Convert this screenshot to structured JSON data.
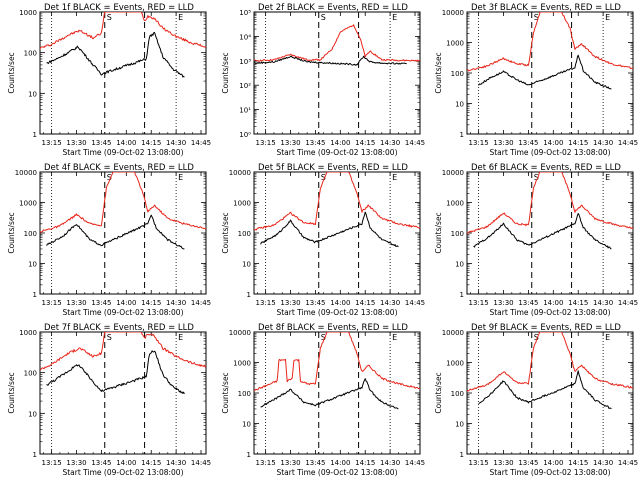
{
  "colors": {
    "events": "#000000",
    "lld": "#e8251a",
    "axes": "#000000"
  },
  "chart_data": [
    {
      "type": "line",
      "title": "Det 1f  BLACK = Events, RED = LLD",
      "xlabel": "Start Time (09-Oct-02 13:08:00)",
      "ylabel": "Counts/sec",
      "y_scale": "log",
      "ylim": [
        1,
        1000
      ],
      "y_ticks": [
        "1",
        "10",
        "100",
        "1000"
      ],
      "x_ticks": [
        "13:15",
        "13:30",
        "13:45",
        "14:00",
        "14:15",
        "14:30",
        "14:45"
      ],
      "markers": [
        "S",
        "E"
      ],
      "series": [
        {
          "name": "LLD",
          "color": "#e8251a",
          "x": [
            "13:08",
            "13:15",
            "13:25",
            "13:32",
            "13:40",
            "13:45",
            "13:47",
            "14:09",
            "14:11",
            "14:13",
            "14:17",
            "14:22",
            "14:30",
            "14:40",
            "14:48"
          ],
          "y": [
            130,
            160,
            270,
            350,
            230,
            300,
            1000,
            1000,
            600,
            800,
            700,
            400,
            250,
            170,
            140
          ]
        },
        {
          "name": "Events",
          "color": "#000000",
          "x": [
            "13:12",
            "13:18",
            "13:25",
            "13:31",
            "13:40",
            "13:45",
            "14:12",
            "14:14",
            "14:17",
            "14:22",
            "14:28",
            "14:35"
          ],
          "y": [
            55,
            70,
            100,
            140,
            50,
            30,
            70,
            250,
            300,
            80,
            40,
            25
          ]
        }
      ]
    },
    {
      "type": "line",
      "title": "Det 2f  BLACK = Events, RED = LLD",
      "xlabel": "Start Time (09-Oct-02 13:08:00)",
      "ylabel": "Counts/sec",
      "y_scale": "log",
      "ylim": [
        1,
        100000
      ],
      "y_ticks": [
        "10⁰",
        "10¹",
        "10²",
        "10³",
        "10⁴",
        "10⁵"
      ],
      "x_ticks": [
        "13:15",
        "13:30",
        "13:45",
        "14:00",
        "14:15",
        "14:30",
        "14:45"
      ],
      "markers": [
        "S",
        "E"
      ],
      "series": [
        {
          "name": "LLD",
          "color": "#e8251a",
          "x": [
            "13:08",
            "13:20",
            "13:30",
            "13:40",
            "13:48",
            "13:55",
            "14:00",
            "14:08",
            "14:12",
            "14:15",
            "14:18",
            "14:25",
            "14:48"
          ],
          "y": [
            1000,
            1100,
            1800,
            1100,
            1100,
            3000,
            15000,
            30000,
            8000,
            1500,
            2500,
            1100,
            1000
          ]
        },
        {
          "name": "Events",
          "color": "#000000",
          "x": [
            "13:08",
            "13:20",
            "13:30",
            "13:40",
            "13:48",
            "14:10",
            "14:14",
            "14:18",
            "14:25",
            "14:40"
          ],
          "y": [
            800,
            900,
            1500,
            900,
            850,
            700,
            1500,
            900,
            800,
            750
          ]
        }
      ]
    },
    {
      "type": "line",
      "title": "Det 3f  BLACK = Events, RED = LLD",
      "xlabel": "Start Time (09-Oct-02 13:08:00)",
      "ylabel": "Counts/sec",
      "y_scale": "log",
      "ylim": [
        1,
        10000
      ],
      "y_ticks": [
        "1",
        "10",
        "100",
        "1000",
        "10000"
      ],
      "x_ticks": [
        "13:15",
        "13:30",
        "13:45",
        "14:00",
        "14:15",
        "14:30",
        "14:45"
      ],
      "markers": [
        "S",
        "E"
      ],
      "series": [
        {
          "name": "LLD",
          "color": "#e8251a",
          "x": [
            "13:08",
            "13:20",
            "13:30",
            "13:38",
            "13:45",
            "13:48",
            "13:52",
            "14:05",
            "14:10",
            "14:13",
            "14:17",
            "14:25",
            "14:35",
            "14:48"
          ],
          "y": [
            120,
            170,
            300,
            200,
            180,
            2000,
            10000,
            10000,
            3000,
            600,
            900,
            350,
            200,
            140
          ]
        },
        {
          "name": "Events",
          "color": "#000000",
          "x": [
            "13:15",
            "13:22",
            "13:30",
            "13:38",
            "13:45",
            "14:13",
            "14:15",
            "14:18",
            "14:25",
            "14:35"
          ],
          "y": [
            40,
            70,
            110,
            60,
            40,
            150,
            400,
            120,
            50,
            30
          ]
        }
      ]
    },
    {
      "type": "line",
      "title": "Det 4f  BLACK = Events, RED = LLD",
      "xlabel": "Start Time (09-Oct-02 13:08:00)",
      "ylabel": "Counts/sec",
      "y_scale": "log",
      "ylim": [
        1,
        10000
      ],
      "y_ticks": [
        "1",
        "10",
        "100",
        "1000",
        "10000"
      ],
      "x_ticks": [
        "13:15",
        "13:30",
        "13:45",
        "14:00",
        "14:15",
        "14:30",
        "14:45"
      ],
      "markers": [
        "S",
        "E"
      ],
      "series": [
        {
          "name": "LLD",
          "color": "#e8251a",
          "x": [
            "13:08",
            "13:20",
            "13:30",
            "13:38",
            "13:45",
            "13:48",
            "13:52",
            "14:05",
            "14:10",
            "14:13",
            "14:17",
            "14:25",
            "14:35",
            "14:48"
          ],
          "y": [
            110,
            170,
            400,
            200,
            180,
            3000,
            10000,
            10000,
            2000,
            500,
            800,
            300,
            200,
            140
          ]
        },
        {
          "name": "Events",
          "color": "#000000",
          "x": [
            "13:12",
            "13:22",
            "13:30",
            "13:38",
            "13:45",
            "14:13",
            "14:15",
            "14:18",
            "14:25",
            "14:35"
          ],
          "y": [
            40,
            80,
            200,
            60,
            40,
            200,
            400,
            150,
            60,
            30
          ]
        }
      ]
    },
    {
      "type": "line",
      "title": "Det 5f  BLACK = Events, RED = LLD",
      "xlabel": "Start Time (09-Oct-02 13:08:00)",
      "ylabel": "Counts/sec",
      "y_scale": "log",
      "ylim": [
        1,
        10000
      ],
      "y_ticks": [
        "1",
        "10",
        "100",
        "1000",
        "10000"
      ],
      "x_ticks": [
        "13:15",
        "13:30",
        "13:45",
        "14:00",
        "14:15",
        "14:30",
        "14:45"
      ],
      "markers": [
        "S",
        "E"
      ],
      "series": [
        {
          "name": "LLD",
          "color": "#e8251a",
          "x": [
            "13:08",
            "13:20",
            "13:30",
            "13:38",
            "13:45",
            "13:48",
            "13:52",
            "14:05",
            "14:10",
            "14:13",
            "14:17",
            "14:25",
            "14:35",
            "14:48"
          ],
          "y": [
            130,
            180,
            450,
            220,
            200,
            3000,
            10000,
            10000,
            2000,
            500,
            800,
            300,
            200,
            150
          ]
        },
        {
          "name": "Events",
          "color": "#000000",
          "x": [
            "13:12",
            "13:22",
            "13:30",
            "13:38",
            "13:45",
            "14:13",
            "14:15",
            "14:18",
            "14:25",
            "14:35"
          ],
          "y": [
            45,
            90,
            250,
            70,
            50,
            200,
            500,
            150,
            60,
            35
          ]
        }
      ]
    },
    {
      "type": "line",
      "title": "Det 6f  BLACK = Events, RED = LLD",
      "xlabel": "Start Time (09-Oct-02 13:08:00)",
      "ylabel": "Counts/sec",
      "y_scale": "log",
      "ylim": [
        1,
        10000
      ],
      "y_ticks": [
        "1",
        "10",
        "100",
        "1000",
        "10000"
      ],
      "x_ticks": [
        "13:15",
        "13:30",
        "13:45",
        "14:00",
        "14:15",
        "14:30",
        "14:45"
      ],
      "markers": [
        "S",
        "E"
      ],
      "series": [
        {
          "name": "LLD",
          "color": "#e8251a",
          "x": [
            "13:08",
            "13:20",
            "13:30",
            "13:38",
            "13:45",
            "13:48",
            "13:52",
            "14:05",
            "14:10",
            "14:13",
            "14:17",
            "14:25",
            "14:35",
            "14:48"
          ],
          "y": [
            100,
            160,
            450,
            200,
            180,
            3000,
            10000,
            10000,
            2000,
            500,
            800,
            300,
            200,
            140
          ]
        },
        {
          "name": "Events",
          "color": "#000000",
          "x": [
            "13:12",
            "13:22",
            "13:30",
            "13:38",
            "13:45",
            "14:13",
            "14:15",
            "14:18",
            "14:25",
            "14:35"
          ],
          "y": [
            35,
            80,
            200,
            60,
            40,
            200,
            450,
            150,
            60,
            30
          ]
        }
      ]
    },
    {
      "type": "line",
      "title": "Det 7f  BLACK = Events, RED = LLD",
      "xlabel": "Start Time (09-Oct-02 13:08:00)",
      "ylabel": "Counts/sec",
      "y_scale": "log",
      "ylim": [
        1,
        1000
      ],
      "y_ticks": [
        "1",
        "10",
        "100",
        "1000"
      ],
      "x_ticks": [
        "13:15",
        "13:30",
        "13:45",
        "14:00",
        "14:15",
        "14:30",
        "14:45"
      ],
      "markers": [
        "S",
        "E"
      ],
      "series": [
        {
          "name": "LLD",
          "color": "#e8251a",
          "x": [
            "13:08",
            "13:15",
            "13:25",
            "13:32",
            "13:40",
            "13:45",
            "13:47",
            "14:09",
            "14:11",
            "14:13",
            "14:17",
            "14:22",
            "14:30",
            "14:40",
            "14:48"
          ],
          "y": [
            120,
            160,
            300,
            400,
            250,
            300,
            1000,
            1000,
            700,
            900,
            800,
            400,
            250,
            170,
            140
          ]
        },
        {
          "name": "Events",
          "color": "#000000",
          "x": [
            "13:12",
            "13:18",
            "13:25",
            "13:31",
            "13:40",
            "13:45",
            "14:12",
            "14:14",
            "14:17",
            "14:22",
            "14:28",
            "14:35"
          ],
          "y": [
            50,
            70,
            110,
            160,
            60,
            35,
            80,
            300,
            350,
            90,
            45,
            30
          ]
        }
      ]
    },
    {
      "type": "line",
      "title": "Det 8f  BLACK = Events, RED = LLD",
      "xlabel": "Start Time (09-Oct-02 13:08:00)",
      "ylabel": "Counts/sec",
      "y_scale": "log",
      "ylim": [
        1,
        10000
      ],
      "y_ticks": [
        "1",
        "10",
        "100",
        "1000",
        "10000"
      ],
      "x_ticks": [
        "13:15",
        "13:30",
        "13:45",
        "14:00",
        "14:15",
        "14:30",
        "14:45"
      ],
      "markers": [
        "S",
        "E"
      ],
      "series": [
        {
          "name": "LLD",
          "color": "#e8251a",
          "x": [
            "13:08",
            "13:18",
            "13:22",
            "13:23",
            "13:27",
            "13:28",
            "13:31",
            "13:32",
            "13:35",
            "13:36",
            "13:40",
            "13:45",
            "13:48",
            "13:52",
            "14:05",
            "14:10",
            "14:13",
            "14:17",
            "14:25",
            "14:35",
            "14:48"
          ],
          "y": [
            120,
            200,
            250,
            1200,
            1200,
            250,
            300,
            1200,
            1200,
            250,
            200,
            200,
            3000,
            10000,
            10000,
            2000,
            500,
            800,
            300,
            200,
            140
          ]
        },
        {
          "name": "Events",
          "color": "#000000",
          "x": [
            "13:12",
            "13:22",
            "13:30",
            "13:38",
            "13:45",
            "14:13",
            "14:15",
            "14:18",
            "14:25",
            "14:35"
          ],
          "y": [
            35,
            70,
            130,
            50,
            40,
            150,
            300,
            120,
            50,
            30
          ]
        }
      ]
    },
    {
      "type": "line",
      "title": "Det 9f  BLACK = Events, RED = LLD",
      "xlabel": "Start Time (09-Oct-02 13:08:00)",
      "ylabel": "Counts/sec",
      "y_scale": "log",
      "ylim": [
        1,
        10000
      ],
      "y_ticks": [
        "1",
        "10",
        "100",
        "1000",
        "10000"
      ],
      "x_ticks": [
        "13:15",
        "13:30",
        "13:45",
        "14:00",
        "14:15",
        "14:30",
        "14:45"
      ],
      "markers": [
        "S",
        "E"
      ],
      "series": [
        {
          "name": "LLD",
          "color": "#e8251a",
          "x": [
            "13:08",
            "13:20",
            "13:30",
            "13:38",
            "13:45",
            "13:48",
            "13:52",
            "14:05",
            "14:10",
            "14:13",
            "14:17",
            "14:25",
            "14:35",
            "14:48"
          ],
          "y": [
            120,
            180,
            500,
            220,
            200,
            3000,
            10000,
            10000,
            2000,
            500,
            800,
            300,
            200,
            150
          ]
        },
        {
          "name": "Events",
          "color": "#000000",
          "x": [
            "13:15",
            "13:22",
            "13:30",
            "13:38",
            "13:45",
            "14:13",
            "14:15",
            "14:18",
            "14:25",
            "14:35"
          ],
          "y": [
            45,
            90,
            250,
            70,
            50,
            200,
            500,
            150,
            60,
            30
          ]
        }
      ]
    }
  ]
}
